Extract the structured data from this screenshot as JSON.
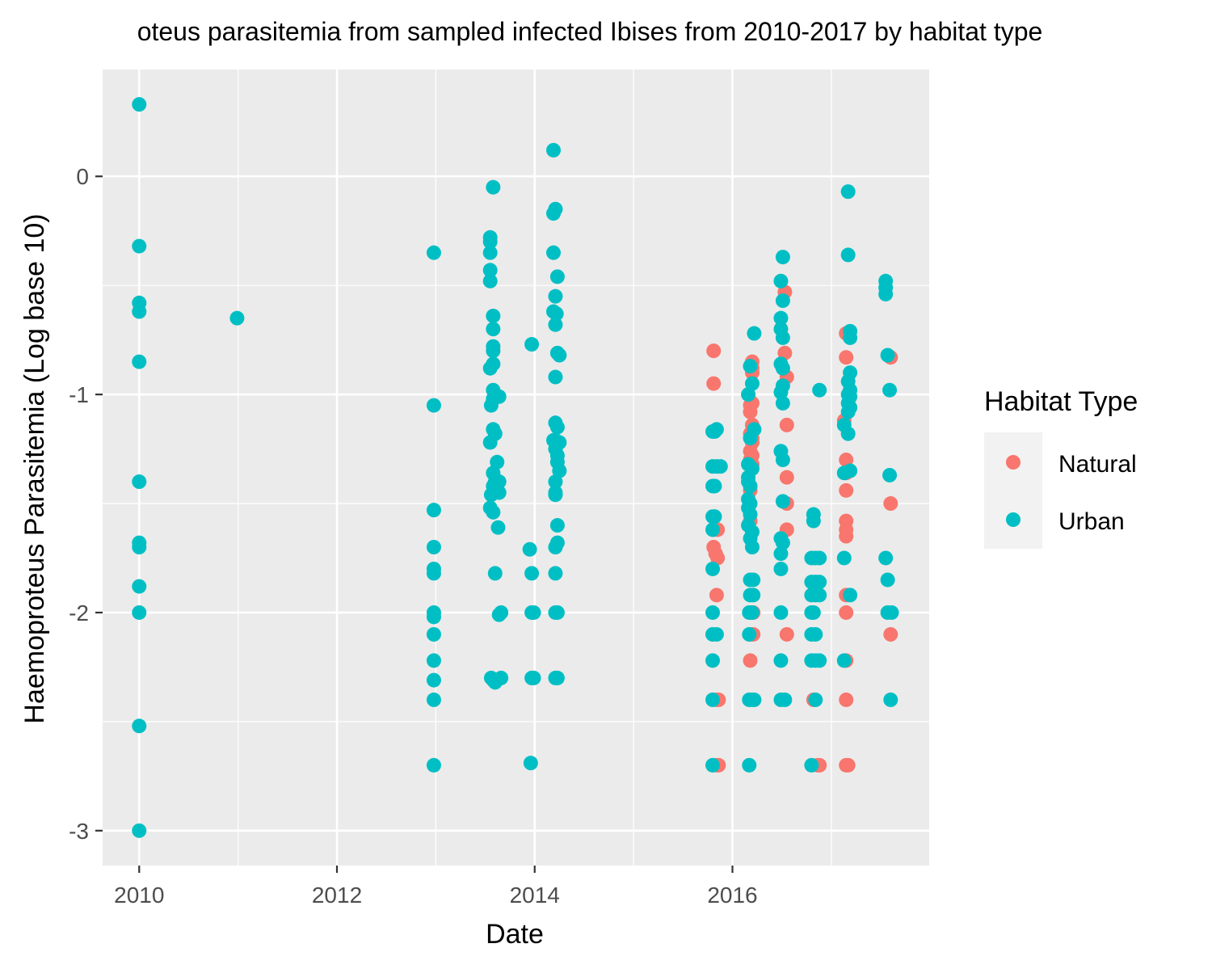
{
  "chart_data": {
    "type": "scatter",
    "title": "oteus parasitemia from sampled infected Ibises from 2010-2017 by habitat type",
    "xlabel": "Date",
    "ylabel": "Haemoproteus Parasitemia (Log base 10)",
    "xlim": [
      2009.63,
      2017.99
    ],
    "ylim": [
      -3.16,
      0.49
    ],
    "x_ticks": [
      2010,
      2012,
      2014,
      2016
    ],
    "x_tick_labels": [
      "2010",
      "2012",
      "2014",
      "2016"
    ],
    "y_ticks": [
      0,
      -1,
      -2,
      -3
    ],
    "y_tick_labels": [
      "0",
      "-1",
      "-2",
      "-3"
    ],
    "grid": true,
    "legend": {
      "title": "Habitat Type",
      "position": "right"
    },
    "series": [
      {
        "name": "Natural",
        "color": "#F8766D",
        "points": [
          [
            2015.81,
            -0.8
          ],
          [
            2015.81,
            -0.95
          ],
          [
            2015.81,
            -1.62
          ],
          [
            2015.81,
            -1.7
          ],
          [
            2015.83,
            -1.73
          ],
          [
            2015.85,
            -1.62
          ],
          [
            2015.85,
            -1.75
          ],
          [
            2015.84,
            -1.92
          ],
          [
            2015.84,
            -2.4
          ],
          [
            2015.86,
            -2.4
          ],
          [
            2015.84,
            -2.7
          ],
          [
            2015.86,
            -2.7
          ],
          [
            2016.2,
            -0.85
          ],
          [
            2016.2,
            -0.88
          ],
          [
            2016.2,
            -0.9
          ],
          [
            2016.18,
            -1.05
          ],
          [
            2016.18,
            -1.08
          ],
          [
            2016.2,
            -1.04
          ],
          [
            2016.2,
            -1.14
          ],
          [
            2016.18,
            -1.18
          ],
          [
            2016.2,
            -1.2
          ],
          [
            2016.2,
            -1.22
          ],
          [
            2016.18,
            -1.26
          ],
          [
            2016.2,
            -1.28
          ],
          [
            2016.18,
            -1.3
          ],
          [
            2016.2,
            -1.32
          ],
          [
            2016.18,
            -1.44
          ],
          [
            2016.18,
            -1.58
          ],
          [
            2016.18,
            -2.0
          ],
          [
            2016.21,
            -2.0
          ],
          [
            2016.18,
            -2.1
          ],
          [
            2016.21,
            -2.1
          ],
          [
            2016.18,
            -2.22
          ],
          [
            2016.53,
            -0.53
          ],
          [
            2016.53,
            -0.81
          ],
          [
            2016.55,
            -0.92
          ],
          [
            2016.55,
            -1.14
          ],
          [
            2016.55,
            -1.38
          ],
          [
            2016.55,
            -1.5
          ],
          [
            2016.55,
            -1.62
          ],
          [
            2016.55,
            -2.1
          ],
          [
            2016.82,
            -2.4
          ],
          [
            2016.86,
            -2.7
          ],
          [
            2016.88,
            -2.7
          ],
          [
            2017.13,
            -1.12
          ],
          [
            2017.15,
            -0.72
          ],
          [
            2017.15,
            -0.83
          ],
          [
            2017.15,
            -1.3
          ],
          [
            2017.15,
            -1.36
          ],
          [
            2017.15,
            -1.44
          ],
          [
            2017.15,
            -1.58
          ],
          [
            2017.15,
            -1.62
          ],
          [
            2017.15,
            -1.65
          ],
          [
            2017.15,
            -1.92
          ],
          [
            2017.15,
            -2.0
          ],
          [
            2017.15,
            -2.22
          ],
          [
            2017.15,
            -2.4
          ],
          [
            2017.15,
            -2.7
          ],
          [
            2017.17,
            -2.7
          ],
          [
            2017.6,
            -0.83
          ],
          [
            2017.6,
            -1.5
          ],
          [
            2017.6,
            -2.1
          ]
        ]
      },
      {
        "name": "Urban",
        "color": "#00BFC4",
        "points": [
          [
            2010,
            0.33
          ],
          [
            2010,
            -0.32
          ],
          [
            2010,
            -0.58
          ],
          [
            2010,
            -0.62
          ],
          [
            2010,
            -0.85
          ],
          [
            2010,
            -1.4
          ],
          [
            2010,
            -1.68
          ],
          [
            2010,
            -1.7
          ],
          [
            2010,
            -1.88
          ],
          [
            2010,
            -2.0
          ],
          [
            2010,
            -2.52
          ],
          [
            2010,
            -3.0
          ],
          [
            2010.99,
            -0.65
          ],
          [
            2012.98,
            -0.35
          ],
          [
            2012.98,
            -1.05
          ],
          [
            2012.98,
            -1.53
          ],
          [
            2012.98,
            -1.7
          ],
          [
            2012.98,
            -1.8
          ],
          [
            2012.98,
            -1.82
          ],
          [
            2012.98,
            -2.0
          ],
          [
            2012.98,
            -2.02
          ],
          [
            2012.98,
            -2.1
          ],
          [
            2012.98,
            -2.22
          ],
          [
            2012.98,
            -2.31
          ],
          [
            2012.98,
            -2.4
          ],
          [
            2012.98,
            -2.7
          ],
          [
            2013.55,
            -0.28
          ],
          [
            2013.55,
            -0.3
          ],
          [
            2013.55,
            -0.35
          ],
          [
            2013.55,
            -0.43
          ],
          [
            2013.55,
            -0.48
          ],
          [
            2013.58,
            -0.05
          ],
          [
            2013.58,
            -0.64
          ],
          [
            2013.58,
            -0.7
          ],
          [
            2013.58,
            -0.78
          ],
          [
            2013.58,
            -0.8
          ],
          [
            2013.55,
            -0.88
          ],
          [
            2013.58,
            -0.86
          ],
          [
            2013.58,
            -0.98
          ],
          [
            2013.6,
            -1.0
          ],
          [
            2013.58,
            -1.02
          ],
          [
            2013.56,
            -1.05
          ],
          [
            2013.6,
            -1.01
          ],
          [
            2013.64,
            -1.01
          ],
          [
            2013.58,
            -1.16
          ],
          [
            2013.6,
            -1.18
          ],
          [
            2013.55,
            -1.22
          ],
          [
            2013.58,
            -1.36
          ],
          [
            2013.62,
            -1.31
          ],
          [
            2013.6,
            -1.4
          ],
          [
            2013.58,
            -1.42
          ],
          [
            2013.64,
            -1.4
          ],
          [
            2013.64,
            -1.45
          ],
          [
            2013.56,
            -1.46
          ],
          [
            2013.6,
            -1.44
          ],
          [
            2013.55,
            -1.52
          ],
          [
            2013.58,
            -1.54
          ],
          [
            2013.63,
            -1.61
          ],
          [
            2013.6,
            -1.82
          ],
          [
            2013.64,
            -2.01
          ],
          [
            2013.66,
            -2.0
          ],
          [
            2013.56,
            -2.3
          ],
          [
            2013.58,
            -2.31
          ],
          [
            2013.6,
            -2.32
          ],
          [
            2013.66,
            -2.3
          ],
          [
            2013.97,
            -0.77
          ],
          [
            2013.95,
            -1.71
          ],
          [
            2013.97,
            -1.82
          ],
          [
            2013.97,
            -2.0
          ],
          [
            2013.99,
            -2.0
          ],
          [
            2013.97,
            -2.3
          ],
          [
            2013.99,
            -2.3
          ],
          [
            2013.96,
            -2.69
          ],
          [
            2014.19,
            0.12
          ],
          [
            2014.19,
            -0.17
          ],
          [
            2014.21,
            -0.15
          ],
          [
            2014.19,
            -0.35
          ],
          [
            2014.23,
            -0.46
          ],
          [
            2014.21,
            -0.55
          ],
          [
            2014.19,
            -0.62
          ],
          [
            2014.22,
            -0.63
          ],
          [
            2014.21,
            -0.68
          ],
          [
            2014.23,
            -0.81
          ],
          [
            2014.25,
            -0.82
          ],
          [
            2014.21,
            -0.92
          ],
          [
            2014.21,
            -1.13
          ],
          [
            2014.23,
            -1.15
          ],
          [
            2014.19,
            -1.21
          ],
          [
            2014.21,
            -1.21
          ],
          [
            2014.25,
            -1.22
          ],
          [
            2014.21,
            -1.25
          ],
          [
            2014.23,
            -1.28
          ],
          [
            2014.23,
            -1.31
          ],
          [
            2014.25,
            -1.35
          ],
          [
            2014.21,
            -1.4
          ],
          [
            2014.21,
            -1.46
          ],
          [
            2014.21,
            -1.45
          ],
          [
            2014.23,
            -1.6
          ],
          [
            2014.21,
            -1.7
          ],
          [
            2014.23,
            -1.68
          ],
          [
            2014.21,
            -1.82
          ],
          [
            2014.21,
            -2.0
          ],
          [
            2014.23,
            -2.0
          ],
          [
            2014.21,
            -2.3
          ],
          [
            2014.23,
            -2.3
          ],
          [
            2015.8,
            -1.17
          ],
          [
            2015.82,
            -1.17
          ],
          [
            2015.84,
            -1.16
          ],
          [
            2015.8,
            -1.33
          ],
          [
            2015.84,
            -1.33
          ],
          [
            2015.88,
            -1.33
          ],
          [
            2015.8,
            -1.42
          ],
          [
            2015.82,
            -1.42
          ],
          [
            2015.8,
            -1.56
          ],
          [
            2015.82,
            -1.56
          ],
          [
            2015.8,
            -1.62
          ],
          [
            2015.8,
            -1.8
          ],
          [
            2015.8,
            -2.0
          ],
          [
            2015.8,
            -2.1
          ],
          [
            2015.84,
            -2.1
          ],
          [
            2015.8,
            -2.22
          ],
          [
            2015.8,
            -2.4
          ],
          [
            2015.8,
            -2.7
          ],
          [
            2016.22,
            -0.72
          ],
          [
            2016.18,
            -0.87
          ],
          [
            2016.2,
            -0.95
          ],
          [
            2016.16,
            -1.0
          ],
          [
            2016.22,
            -1.16
          ],
          [
            2016.18,
            -1.2
          ],
          [
            2016.16,
            -1.32
          ],
          [
            2016.2,
            -1.34
          ],
          [
            2016.16,
            -1.38
          ],
          [
            2016.16,
            -1.4
          ],
          [
            2016.18,
            -1.42
          ],
          [
            2016.16,
            -1.48
          ],
          [
            2016.18,
            -1.5
          ],
          [
            2016.16,
            -1.52
          ],
          [
            2016.18,
            -1.55
          ],
          [
            2016.16,
            -1.6
          ],
          [
            2016.2,
            -1.63
          ],
          [
            2016.18,
            -1.66
          ],
          [
            2016.2,
            -1.7
          ],
          [
            2016.18,
            -1.85
          ],
          [
            2016.21,
            -1.85
          ],
          [
            2016.18,
            -1.92
          ],
          [
            2016.21,
            -1.92
          ],
          [
            2016.17,
            -2.0
          ],
          [
            2016.2,
            -2.0
          ],
          [
            2016.17,
            -2.1
          ],
          [
            2016.17,
            -2.4
          ],
          [
            2016.2,
            -2.4
          ],
          [
            2016.22,
            -2.4
          ],
          [
            2016.17,
            -2.7
          ],
          [
            2016.51,
            -0.37
          ],
          [
            2016.49,
            -0.48
          ],
          [
            2016.51,
            -0.57
          ],
          [
            2016.49,
            -0.65
          ],
          [
            2016.49,
            -0.7
          ],
          [
            2016.51,
            -0.74
          ],
          [
            2016.49,
            -0.86
          ],
          [
            2016.51,
            -0.88
          ],
          [
            2016.51,
            -0.96
          ],
          [
            2016.49,
            -0.99
          ],
          [
            2016.51,
            -1.04
          ],
          [
            2016.49,
            -1.26
          ],
          [
            2016.51,
            -1.3
          ],
          [
            2016.51,
            -1.49
          ],
          [
            2016.49,
            -1.66
          ],
          [
            2016.51,
            -1.68
          ],
          [
            2016.49,
            -1.73
          ],
          [
            2016.49,
            -1.8
          ],
          [
            2016.49,
            -2.0
          ],
          [
            2016.49,
            -2.22
          ],
          [
            2016.49,
            -2.4
          ],
          [
            2016.53,
            -2.4
          ],
          [
            2016.88,
            -0.98
          ],
          [
            2016.82,
            -1.55
          ],
          [
            2016.82,
            -1.58
          ],
          [
            2016.8,
            -1.75
          ],
          [
            2016.84,
            -1.75
          ],
          [
            2016.88,
            -1.75
          ],
          [
            2016.8,
            -1.86
          ],
          [
            2016.84,
            -1.86
          ],
          [
            2016.88,
            -1.86
          ],
          [
            2016.8,
            -1.92
          ],
          [
            2016.84,
            -1.92
          ],
          [
            2016.88,
            -1.92
          ],
          [
            2016.8,
            -2.0
          ],
          [
            2016.82,
            -2.0
          ],
          [
            2016.8,
            -2.1
          ],
          [
            2016.84,
            -2.1
          ],
          [
            2016.8,
            -2.22
          ],
          [
            2016.84,
            -2.22
          ],
          [
            2016.88,
            -2.22
          ],
          [
            2016.84,
            -2.4
          ],
          [
            2016.8,
            -2.7
          ],
          [
            2017.17,
            -0.07
          ],
          [
            2017.17,
            -0.36
          ],
          [
            2017.19,
            -0.71
          ],
          [
            2017.19,
            -0.74
          ],
          [
            2017.19,
            -0.9
          ],
          [
            2017.17,
            -0.94
          ],
          [
            2017.19,
            -0.98
          ],
          [
            2017.17,
            -1.0
          ],
          [
            2017.19,
            -1.01
          ],
          [
            2017.17,
            -1.04
          ],
          [
            2017.19,
            -1.06
          ],
          [
            2017.17,
            -1.08
          ],
          [
            2017.13,
            -1.14
          ],
          [
            2017.17,
            -1.18
          ],
          [
            2017.13,
            -1.36
          ],
          [
            2017.19,
            -1.35
          ],
          [
            2017.13,
            -1.75
          ],
          [
            2017.19,
            -1.92
          ],
          [
            2017.13,
            -2.22
          ],
          [
            2017.55,
            -0.48
          ],
          [
            2017.55,
            -0.51
          ],
          [
            2017.55,
            -0.54
          ],
          [
            2017.57,
            -0.82
          ],
          [
            2017.59,
            -0.98
          ],
          [
            2017.59,
            -1.37
          ],
          [
            2017.55,
            -1.75
          ],
          [
            2017.57,
            -1.85
          ],
          [
            2017.57,
            -2.0
          ],
          [
            2017.61,
            -2.0
          ],
          [
            2017.6,
            -2.4
          ]
        ]
      }
    ]
  }
}
